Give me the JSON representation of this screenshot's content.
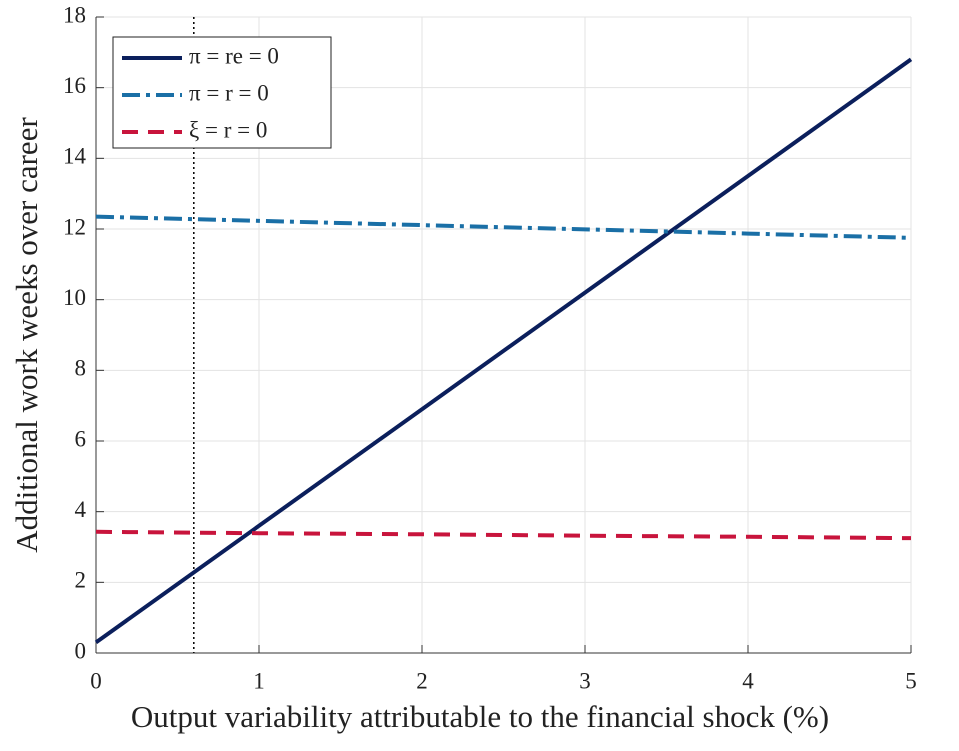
{
  "chart_data": {
    "type": "line",
    "xlabel": "Output variability attributable to the financial shock (%)",
    "ylabel": "Additional work weeks over career",
    "x": [
      0,
      1,
      2,
      3,
      4,
      5
    ],
    "series": [
      {
        "name": "π = re = 0",
        "color": "#0b1f5c",
        "style": "solid",
        "values": [
          0.3,
          3.6,
          6.9,
          10.2,
          13.5,
          16.8
        ]
      },
      {
        "name": "π = r = 0",
        "color": "#1a6fa6",
        "style": "dashdot",
        "values": [
          12.35,
          12.23,
          12.11,
          11.99,
          11.87,
          11.75
        ]
      },
      {
        "name": "ξ = r = 0",
        "color": "#c8143c",
        "style": "dashed",
        "values": [
          3.43,
          3.39,
          3.36,
          3.32,
          3.29,
          3.25
        ]
      }
    ],
    "vline": 0.6,
    "xlim": [
      0,
      5
    ],
    "xticks": [
      0,
      1,
      2,
      3,
      4,
      5
    ],
    "ylim": [
      0,
      18
    ],
    "yticks": [
      0,
      2,
      4,
      6,
      8,
      10,
      12,
      14,
      16,
      18
    ],
    "grid": true,
    "legend": "upper left"
  }
}
